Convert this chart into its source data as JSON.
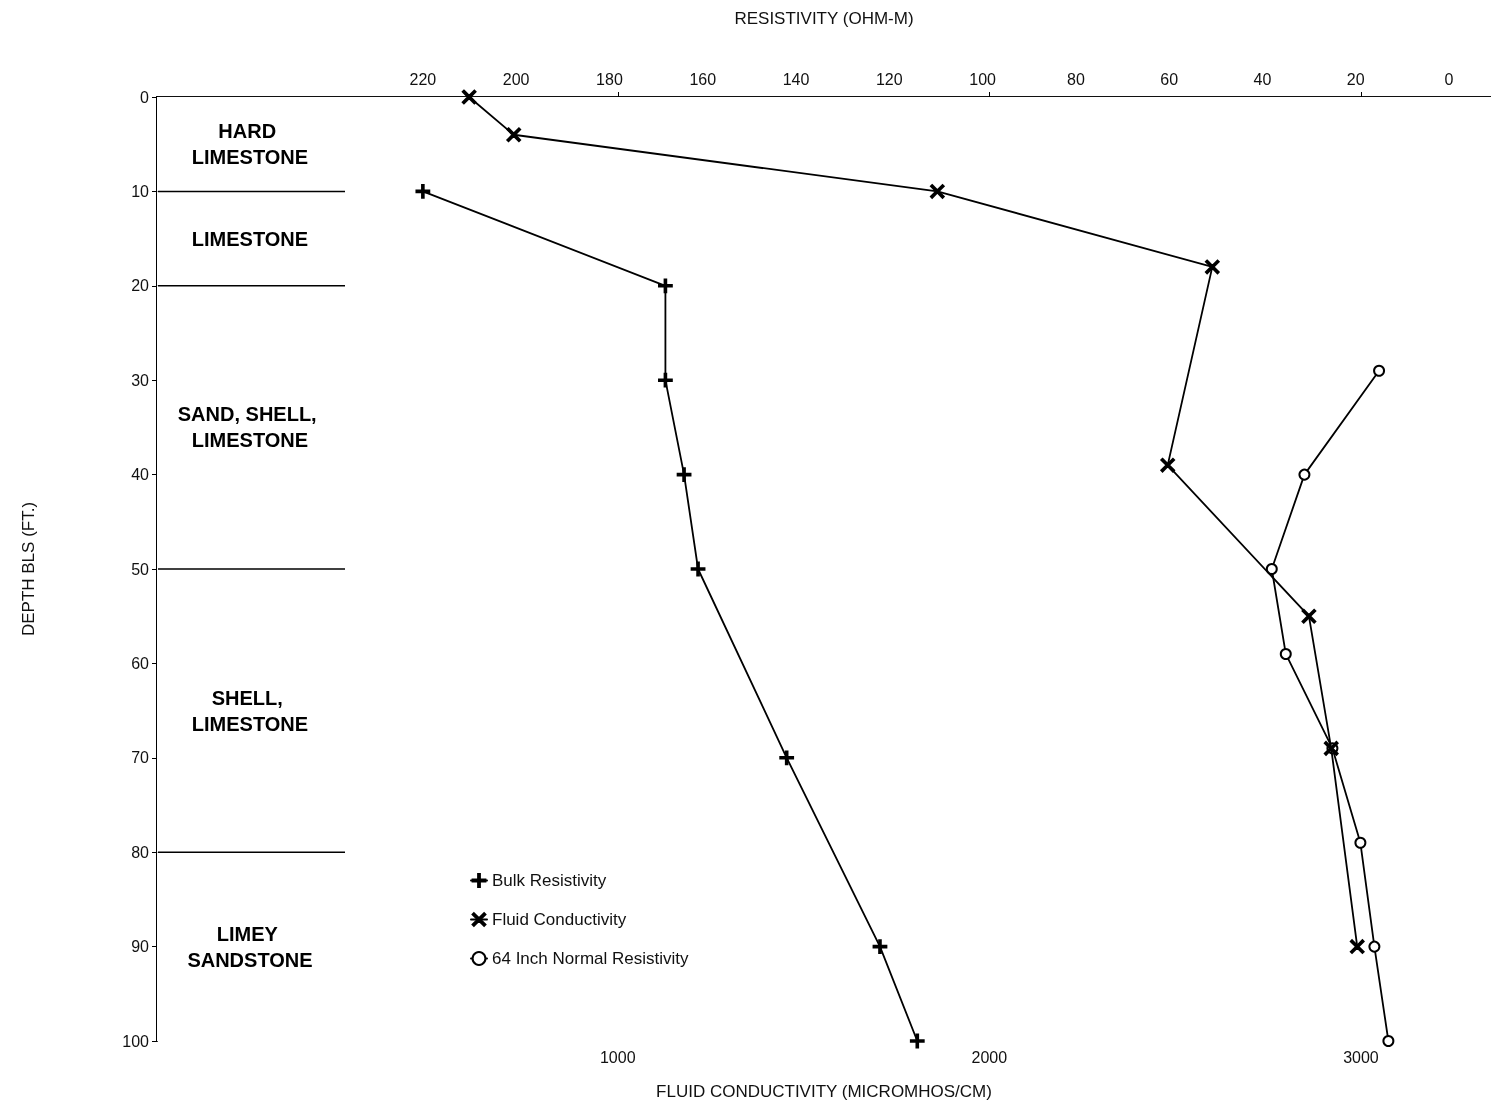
{
  "chart_data": {
    "type": "line",
    "xlabel": "FLUID CONDUCTIVITY (MICROMHOS/CM)",
    "ylabel": "DEPTH BLS (FT.)",
    "x2label": "RESISTIVITY (OHM-M)",
    "xlim": [
      -240,
      3350
    ],
    "xticks": [
      1000,
      2000,
      3000
    ],
    "x2lim": [
      277,
      -9
    ],
    "x2ticks": [
      220,
      200,
      180,
      160,
      140,
      120,
      100,
      80,
      60,
      40,
      20,
      0
    ],
    "ylim": [
      100,
      0
    ],
    "yticks": [
      0,
      10,
      20,
      30,
      40,
      50,
      60,
      70,
      80,
      90,
      100
    ],
    "grid": false,
    "legend": "bottom left",
    "series": [
      {
        "name": "Bulk Resistivity",
        "color": "#000000",
        "axis": "x2",
        "marker": "plus",
        "x": [
          220,
          168,
          168,
          164,
          161,
          142,
          122,
          114
        ],
        "values": [
          10,
          20,
          30,
          40,
          50,
          70,
          90,
          100
        ]
      },
      {
        "name": "Fluid Conductivity",
        "color": "#000000",
        "marker": "cross",
        "x": [
          600,
          720,
          1860,
          2600,
          2480,
          2860,
          2920,
          2990
        ],
        "values": [
          0,
          4,
          10,
          18,
          39,
          55,
          69,
          90
        ]
      },
      {
        "name": "64 Inch Normal Resistivity",
        "color": "#000000",
        "axis": "x2",
        "marker": "circle",
        "x": [
          15,
          31,
          38,
          35,
          25,
          19,
          16,
          13
        ],
        "values": [
          29,
          40,
          50,
          59,
          69,
          79,
          90,
          100
        ]
      }
    ],
    "bands": [
      {
        "axis": "y",
        "from": 0,
        "to": 10,
        "label": "HARD LIMESTONE"
      },
      {
        "axis": "y",
        "from": 10,
        "to": 20,
        "label": "LIMESTONE"
      },
      {
        "axis": "y",
        "from": 20,
        "to": 50,
        "label": "SAND, SHELL, LIMESTONE"
      },
      {
        "axis": "y",
        "from": 50,
        "to": 80,
        "label": "SHELL, LIMESTONE"
      },
      {
        "axis": "y",
        "from": 80,
        "to": 100,
        "label": "LIMEY SANDSTONE"
      }
    ]
  }
}
